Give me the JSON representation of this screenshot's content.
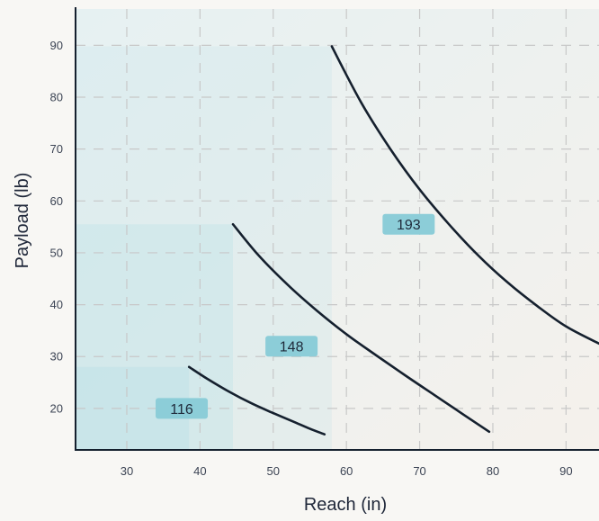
{
  "chart_data": {
    "type": "line",
    "title": "",
    "xlabel": "Reach (in)",
    "ylabel": "Payload (lb)",
    "xlim": [
      23,
      94.5
    ],
    "ylim": [
      12,
      97
    ],
    "x_ticks": [
      30,
      40,
      50,
      60,
      70,
      80,
      90
    ],
    "y_ticks": [
      20,
      30,
      40,
      50,
      60,
      70,
      80,
      90
    ],
    "grid": "dashed",
    "colors": {
      "curve": "#15202e",
      "label_fill": "#8ccdd8",
      "region_fill": "#b9e1e6",
      "grid": "#c8c8c8",
      "axis": "#15202e",
      "background": "#f8f7f4"
    },
    "series": [
      {
        "name": "116",
        "x": [
          38.5,
          41,
          44,
          47,
          50,
          53,
          55,
          57
        ],
        "values": [
          28,
          25.7,
          23.2,
          21,
          19.1,
          17.3,
          16.1,
          15
        ],
        "label_at": [
          37.5,
          20
        ]
      },
      {
        "name": "148",
        "x": [
          44.5,
          48,
          52,
          56,
          60,
          64,
          68,
          72,
          76,
          79.5
        ],
        "values": [
          55.5,
          49.5,
          43.8,
          38.8,
          34.3,
          30.3,
          26.4,
          22.6,
          18.8,
          15.5
        ],
        "label_at": [
          52.5,
          32
        ]
      },
      {
        "name": "193",
        "x": [
          58,
          62,
          66,
          70,
          74,
          78,
          82,
          86,
          90,
          94.5
        ],
        "values": [
          89.8,
          79,
          70,
          62.2,
          55.5,
          49.5,
          44.3,
          39.8,
          35.8,
          32.5
        ],
        "label_at": [
          68.5,
          55.5
        ]
      }
    ]
  }
}
